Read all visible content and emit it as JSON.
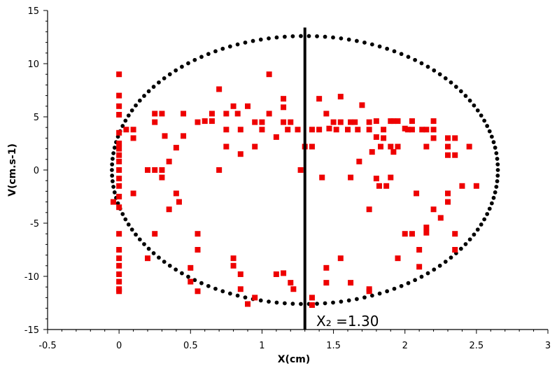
{
  "chart_data": {
    "type": "scatter",
    "title": "",
    "xlabel": "X(cm)",
    "ylabel": "V(cm.s-1)",
    "xlim": [
      -0.5,
      3
    ],
    "ylim": [
      -15,
      15
    ],
    "xticks": [
      "-0.5",
      "0",
      "0.5",
      "1",
      "1.5",
      "2",
      "2.5",
      "3"
    ],
    "yticks": [
      "15",
      "10",
      "5",
      "0",
      "-5",
      "-10",
      "-15"
    ],
    "grid": false,
    "legend": "none",
    "colors": {
      "ellipse": "#000000",
      "points": "#ee0000",
      "line": "#000000"
    },
    "ellipse": {
      "center": [
        1.3,
        0
      ],
      "x_semi_axis": 1.35,
      "y_semi_axis": 12.6,
      "n_dots": 150
    },
    "vertical_line": {
      "x": 1.3,
      "y_range": [
        -15,
        13.4
      ]
    },
    "annotation": {
      "text": "X₂ =1.30",
      "at": [
        1.38,
        -14.2
      ]
    },
    "series": [
      {
        "marker": "square",
        "points": [
          [
            0,
            9
          ],
          [
            0,
            7
          ],
          [
            0,
            6
          ],
          [
            0,
            5.2
          ],
          [
            0,
            3.5
          ],
          [
            0,
            2.5
          ],
          [
            0,
            2
          ],
          [
            0,
            1.4
          ],
          [
            0,
            0.8
          ],
          [
            0,
            0
          ],
          [
            0,
            -0.8
          ],
          [
            0,
            -1.5
          ],
          [
            0,
            -2.5
          ],
          [
            0,
            -3.5
          ],
          [
            0,
            -6
          ],
          [
            0,
            -7.5
          ],
          [
            0,
            -8.3
          ],
          [
            0,
            -9
          ],
          [
            0,
            -9.8
          ],
          [
            0,
            -10.5
          ],
          [
            0,
            -11.2
          ],
          [
            0,
            -11.4
          ],
          [
            -0.04,
            -3
          ],
          [
            0.05,
            3.8
          ],
          [
            0.1,
            3.8
          ],
          [
            0.1,
            3
          ],
          [
            0.1,
            -2.2
          ],
          [
            0.2,
            0
          ],
          [
            0.2,
            -8.3
          ],
          [
            0.25,
            5.3
          ],
          [
            0.25,
            4.5
          ],
          [
            0.25,
            0
          ],
          [
            0.25,
            -6
          ],
          [
            0.3,
            5.3
          ],
          [
            0.3,
            0
          ],
          [
            0.3,
            -0.7
          ],
          [
            0.32,
            3.2
          ],
          [
            0.35,
            0.8
          ],
          [
            0.35,
            -3.7
          ],
          [
            0.4,
            2.1
          ],
          [
            0.4,
            -2.2
          ],
          [
            0.42,
            -3
          ],
          [
            0.45,
            5.3
          ],
          [
            0.45,
            3.2
          ],
          [
            0.5,
            -9.2
          ],
          [
            0.5,
            -10.5
          ],
          [
            0.55,
            4.5
          ],
          [
            0.55,
            -6
          ],
          [
            0.55,
            -7.5
          ],
          [
            0.55,
            -11.4
          ],
          [
            0.6,
            4.6
          ],
          [
            0.65,
            5.3
          ],
          [
            0.65,
            4.6
          ],
          [
            0.7,
            7.6
          ],
          [
            0.7,
            0
          ],
          [
            0.75,
            5.3
          ],
          [
            0.75,
            3.8
          ],
          [
            0.75,
            2.2
          ],
          [
            0.8,
            6
          ],
          [
            0.8,
            -8.3
          ],
          [
            0.8,
            -9
          ],
          [
            0.83,
            5.3
          ],
          [
            0.85,
            3.8
          ],
          [
            0.85,
            1.5
          ],
          [
            0.85,
            -9.8
          ],
          [
            0.85,
            -11.2
          ],
          [
            0.9,
            6
          ],
          [
            0.9,
            -12.6
          ],
          [
            0.95,
            4.5
          ],
          [
            0.95,
            2.2
          ],
          [
            0.95,
            -12
          ],
          [
            1.0,
            4.5
          ],
          [
            1.0,
            3.8
          ],
          [
            1.05,
            9
          ],
          [
            1.05,
            5.3
          ],
          [
            1.1,
            3.1
          ],
          [
            1.1,
            -9.8
          ],
          [
            1.15,
            6.7
          ],
          [
            1.15,
            5.9
          ],
          [
            1.15,
            4.5
          ],
          [
            1.15,
            -9.7
          ],
          [
            1.18,
            3.8
          ],
          [
            1.2,
            4.5
          ],
          [
            1.2,
            -10.6
          ],
          [
            1.22,
            -11.2
          ],
          [
            1.25,
            3.8
          ],
          [
            1.27,
            0
          ],
          [
            1.3,
            2.2
          ],
          [
            1.35,
            3.8
          ],
          [
            1.35,
            2.2
          ],
          [
            1.35,
            -12
          ],
          [
            1.35,
            -12.7
          ],
          [
            1.4,
            6.7
          ],
          [
            1.4,
            3.8
          ],
          [
            1.42,
            -0.7
          ],
          [
            1.45,
            5.3
          ],
          [
            1.45,
            -9.2
          ],
          [
            1.45,
            -10.6
          ],
          [
            1.47,
            3.9
          ],
          [
            1.5,
            4.5
          ],
          [
            1.52,
            3.8
          ],
          [
            1.55,
            6.9
          ],
          [
            1.55,
            4.5
          ],
          [
            1.55,
            -8.3
          ],
          [
            1.6,
            3.8
          ],
          [
            1.62,
            4.5
          ],
          [
            1.62,
            -0.7
          ],
          [
            1.62,
            -10.6
          ],
          [
            1.65,
            4.5
          ],
          [
            1.67,
            3.8
          ],
          [
            1.68,
            0.8
          ],
          [
            1.7,
            6.1
          ],
          [
            1.75,
            4.5
          ],
          [
            1.75,
            3.8
          ],
          [
            1.75,
            -3.7
          ],
          [
            1.75,
            -11.2
          ],
          [
            1.75,
            -11.4
          ],
          [
            1.77,
            1.7
          ],
          [
            1.8,
            4.6
          ],
          [
            1.8,
            3.1
          ],
          [
            1.8,
            -0.8
          ],
          [
            1.82,
            -1.5
          ],
          [
            1.83,
            2.2
          ],
          [
            1.85,
            3.8
          ],
          [
            1.85,
            3
          ],
          [
            1.87,
            -1.5
          ],
          [
            1.9,
            4.6
          ],
          [
            1.9,
            2.2
          ],
          [
            1.9,
            -0.7
          ],
          [
            1.92,
            4.6
          ],
          [
            1.92,
            1.7
          ],
          [
            1.95,
            4.6
          ],
          [
            1.95,
            2.2
          ],
          [
            1.95,
            -8.3
          ],
          [
            2.0,
            3.9
          ],
          [
            2.0,
            -6
          ],
          [
            2.02,
            3.8
          ],
          [
            2.05,
            4.6
          ],
          [
            2.05,
            3.8
          ],
          [
            2.05,
            -6
          ],
          [
            2.08,
            -2.2
          ],
          [
            2.1,
            -7.5
          ],
          [
            2.1,
            -9.1
          ],
          [
            2.12,
            3.8
          ],
          [
            2.15,
            3.8
          ],
          [
            2.15,
            2.2
          ],
          [
            2.15,
            -5.4
          ],
          [
            2.15,
            -5.9
          ],
          [
            2.2,
            4.6
          ],
          [
            2.2,
            3.8
          ],
          [
            2.2,
            3
          ],
          [
            2.2,
            -3.7
          ],
          [
            2.25,
            -4.5
          ],
          [
            2.3,
            3
          ],
          [
            2.3,
            2.2
          ],
          [
            2.3,
            1.4
          ],
          [
            2.3,
            -2.2
          ],
          [
            2.3,
            -3
          ],
          [
            2.35,
            3
          ],
          [
            2.35,
            1.4
          ],
          [
            2.35,
            -6
          ],
          [
            2.35,
            -7.5
          ],
          [
            2.4,
            -1.5
          ],
          [
            2.45,
            2.2
          ],
          [
            2.5,
            -1.5
          ]
        ]
      }
    ]
  }
}
